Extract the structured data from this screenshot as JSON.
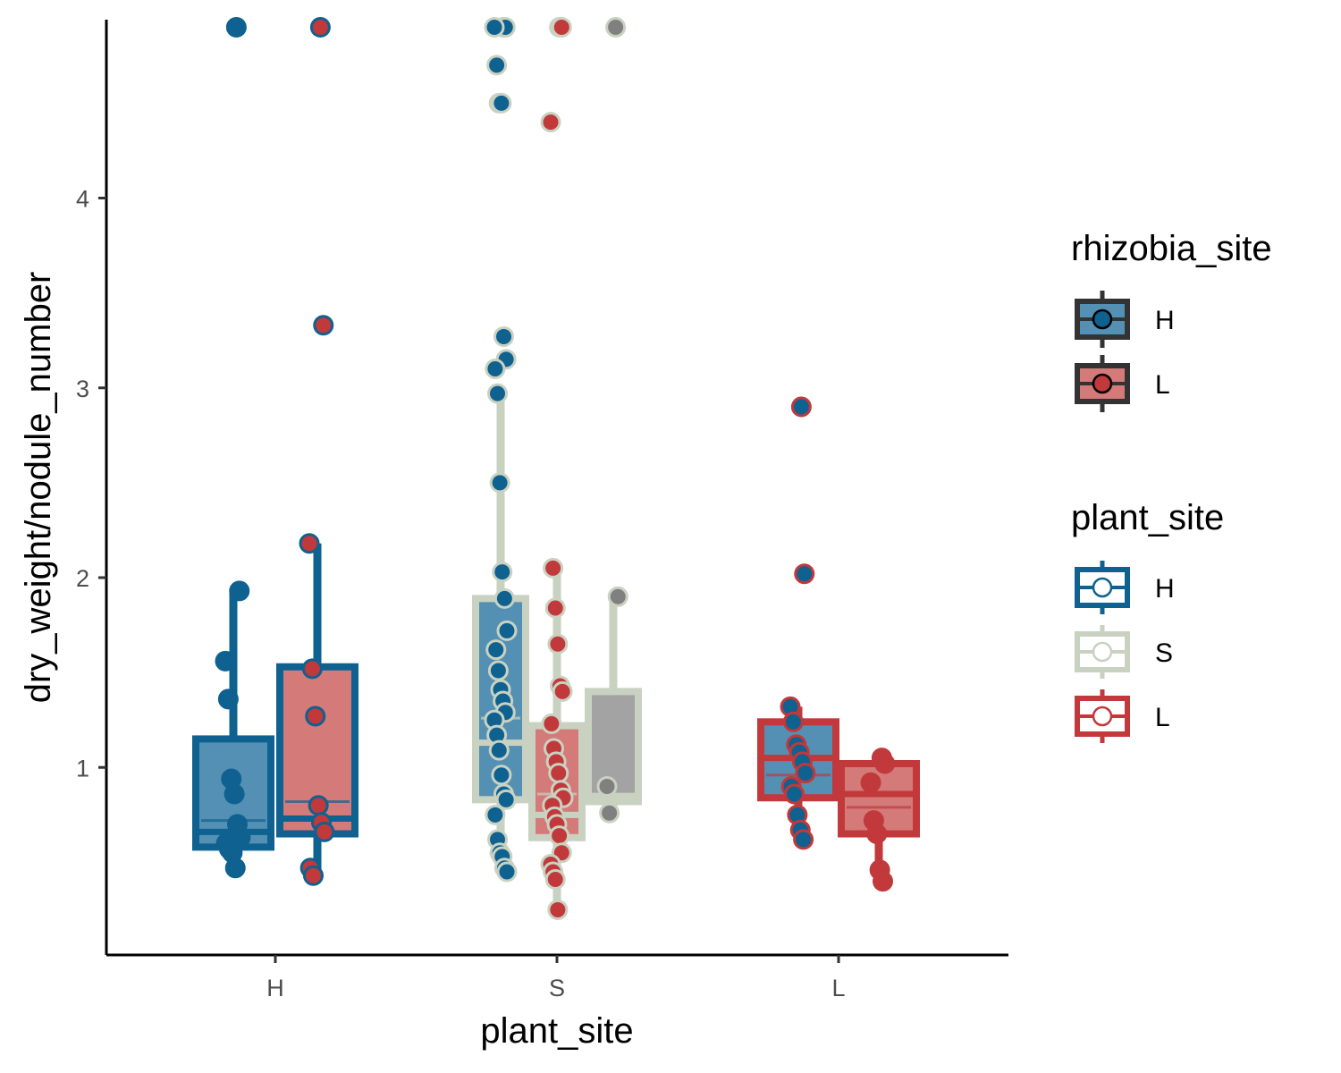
{
  "chart_data": {
    "type": "boxplot",
    "xlabel": "plant_site",
    "ylabel": "dry_weight/nodule_number",
    "categories": [
      "H",
      "S",
      "L"
    ],
    "y_ticks": [
      1,
      2,
      3,
      4
    ],
    "ylim": [
      0.1,
      4.9
    ],
    "grid": false,
    "legend_position": "right",
    "colors": {
      "plant_site": {
        "H": "#0f6190",
        "S": "#c9d2c1",
        "L": "#c1393b"
      },
      "rhizobia_fill": {
        "H": "#5490b4",
        "L": "#d47a79",
        "other": "#a3a3a3"
      },
      "point": {
        "H": "#0f6190",
        "L": "#c1393b",
        "other": "#808080"
      }
    },
    "legends": [
      {
        "title": "rhizobia_site",
        "entries": [
          {
            "label": "H",
            "fill": "#5490b4",
            "point": "#0f6190",
            "border": "#333333"
          },
          {
            "label": "L",
            "fill": "#d47a79",
            "point": "#c1393b",
            "border": "#333333"
          }
        ]
      },
      {
        "title": "plant_site",
        "entries": [
          {
            "label": "H",
            "border": "#0f6190"
          },
          {
            "label": "S",
            "border": "#c9d2c1"
          },
          {
            "label": "L",
            "border": "#c1393b"
          }
        ]
      }
    ],
    "boxes": [
      {
        "plant_site": "H",
        "rhizobia_site": "H",
        "min": 0.47,
        "q1": 0.58,
        "median": 0.66,
        "q3": 1.15,
        "max": 1.93,
        "mean": 0.72,
        "points": [
          4.9,
          1.93,
          1.56,
          1.36,
          0.94,
          0.86,
          0.7,
          0.63,
          0.6,
          0.57,
          0.55,
          0.47
        ]
      },
      {
        "plant_site": "H",
        "rhizobia_site": "L",
        "min": 0.43,
        "q1": 0.65,
        "median": 0.73,
        "q3": 1.53,
        "max": 2.18,
        "mean": 0.82,
        "points": [
          4.9,
          3.33,
          2.18,
          1.52,
          1.27,
          0.8,
          0.71,
          0.66,
          0.47,
          0.43
        ]
      },
      {
        "plant_site": "S",
        "rhizobia_site": "H",
        "min": 0.45,
        "q1": 0.83,
        "median": 1.13,
        "q3": 1.89,
        "max": 3.0,
        "mean": 1.26,
        "points": [
          4.9,
          4.9,
          4.9,
          4.7,
          4.5,
          4.5,
          3.27,
          3.15,
          3.1,
          2.97,
          2.5,
          2.03,
          1.89,
          1.72,
          1.62,
          1.51,
          1.41,
          1.35,
          1.29,
          1.25,
          1.17,
          1.09,
          0.96,
          0.86,
          0.83,
          0.75,
          0.62,
          0.55,
          0.53,
          0.47,
          0.45
        ]
      },
      {
        "plant_site": "S",
        "rhizobia_site": "L",
        "min": 0.25,
        "q1": 0.63,
        "median": 0.75,
        "q3": 1.22,
        "max": 2.05,
        "mean": 0.86,
        "points": [
          4.9,
          4.9,
          4.4,
          2.05,
          1.84,
          1.65,
          1.43,
          1.4,
          1.23,
          1.1,
          1.03,
          0.97,
          0.88,
          0.84,
          0.8,
          0.74,
          0.7,
          0.64,
          0.55,
          0.49,
          0.45,
          0.41,
          0.25
        ]
      },
      {
        "plant_site": "S",
        "rhizobia_site": "other",
        "min": 0.76,
        "q1": 0.82,
        "median": 0.85,
        "q3": 1.4,
        "max": 1.9,
        "mean": 0.85,
        "points": [
          4.9,
          1.9,
          0.9,
          0.76
        ]
      },
      {
        "plant_site": "L",
        "rhizobia_site": "H",
        "min": 0.6,
        "q1": 0.84,
        "median": 1.05,
        "q3": 1.24,
        "max": 1.32,
        "mean": 0.96,
        "points": [
          2.9,
          2.02,
          1.32,
          1.24,
          1.12,
          1.08,
          1.03,
          0.97,
          0.9,
          0.86,
          0.75,
          0.67,
          0.62
        ]
      },
      {
        "plant_site": "L",
        "rhizobia_site": "L",
        "min": 0.4,
        "q1": 0.65,
        "median": 0.86,
        "q3": 1.02,
        "max": 1.05,
        "mean": 0.79,
        "points": [
          1.05,
          1.02,
          0.92,
          0.72,
          0.65,
          0.46,
          0.4
        ]
      }
    ]
  }
}
